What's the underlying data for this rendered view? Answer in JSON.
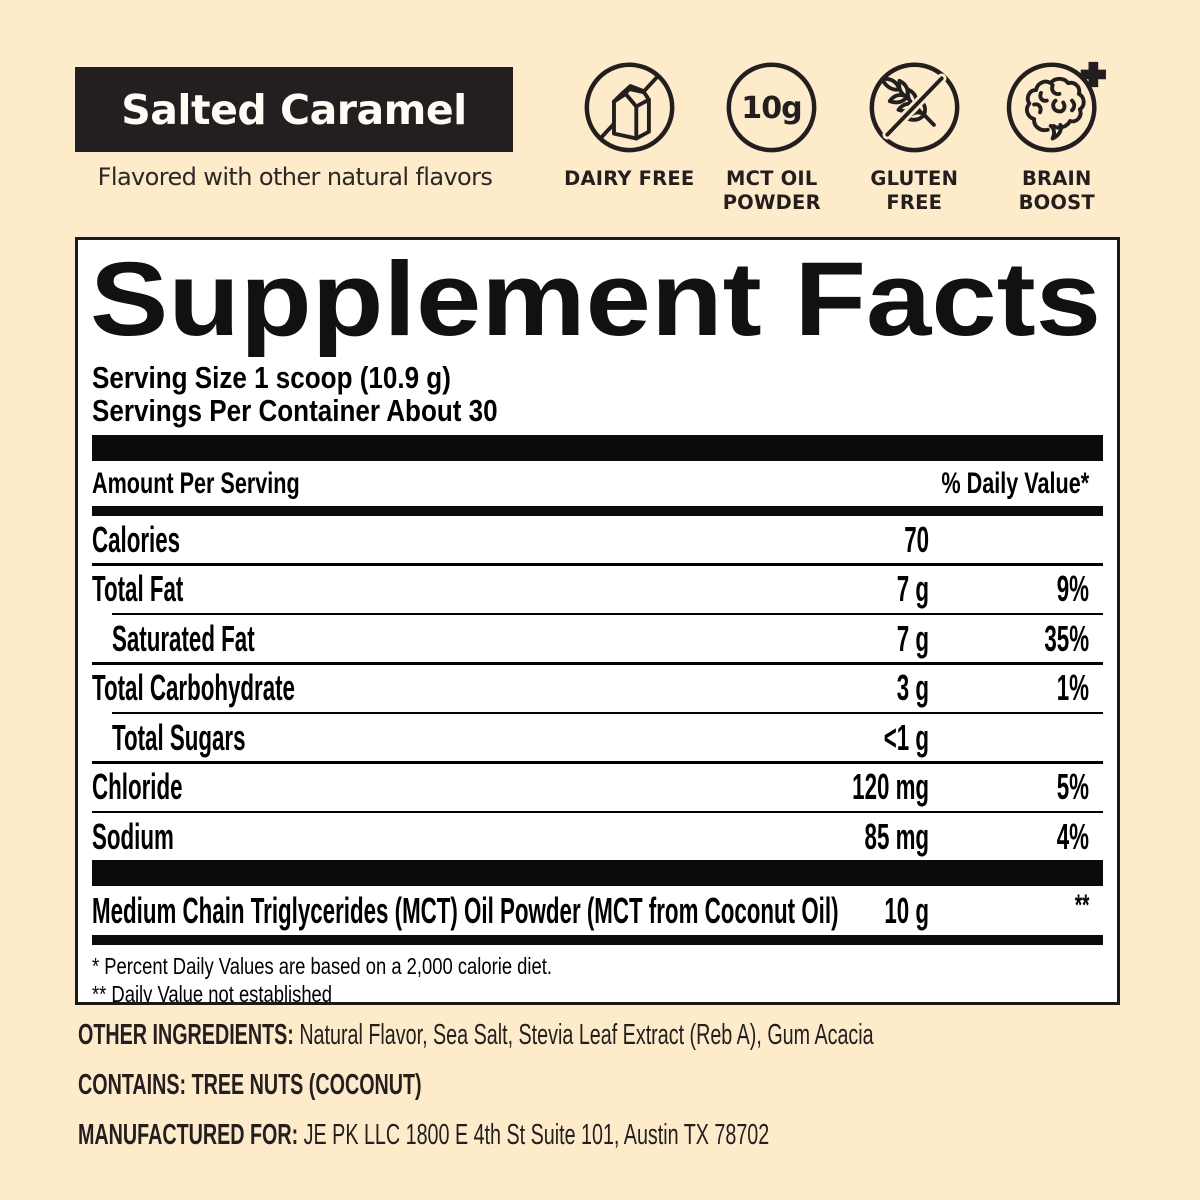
{
  "colors": {
    "background": "#FDEBCA",
    "ink": "#231F20",
    "panel_black": "#000000",
    "panel_white": "#FFFFFF"
  },
  "header": {
    "flavor": "Salted Caramel",
    "subtitle": "Flavored with other natural flavors"
  },
  "badges": [
    {
      "icon": "dairy-free-icon",
      "line1": "DAIRY FREE",
      "line2": ""
    },
    {
      "icon": "mct-oil-powder-icon",
      "circle_text": "10g",
      "line1": "MCT OIL",
      "line2": "POWDER"
    },
    {
      "icon": "gluten-free-icon",
      "line1": "GLUTEN",
      "line2": "FREE"
    },
    {
      "icon": "brain-boost-icon",
      "line1": "BRAIN",
      "line2": "BOOST"
    }
  ],
  "panel": {
    "title": "Supplement Facts",
    "serving_size": "Serving Size 1 scoop (10.9 g)",
    "servings_per_container": "Servings Per Container About 30",
    "col_left": "Amount Per Serving",
    "col_right": "% Daily Value*",
    "rows": [
      {
        "name": "Calories",
        "amount": "70",
        "dv": "",
        "indent": false
      },
      {
        "name": "Total Fat",
        "amount": "7 g",
        "dv": "9%",
        "indent": false
      },
      {
        "name": "Saturated Fat",
        "amount": "7 g",
        "dv": "35%",
        "indent": true
      },
      {
        "name": "Total Carbohydrate",
        "amount": "3 g",
        "dv": "1%",
        "indent": false
      },
      {
        "name": "Total Sugars",
        "amount": "<1 g",
        "dv": "",
        "indent": true
      },
      {
        "name": "Chloride",
        "amount": "120 mg",
        "dv": "5%",
        "indent": false
      },
      {
        "name": "Sodium",
        "amount": "85 mg",
        "dv": "4%",
        "indent": false
      }
    ],
    "mct_row": {
      "name": "Medium Chain Triglycerides (MCT) Oil Powder (MCT from Coconut Oil)",
      "amount": "10 g",
      "dv": "**"
    },
    "footnote1": "* Percent Daily Values are based on a 2,000 calorie diet.",
    "footnote2": "** Daily Value not established"
  },
  "info": [
    {
      "label": "OTHER INGREDIENTS:",
      "text": "Natural Flavor, Sea Salt, Stevia Leaf Extract (Reb A), Gum Acacia"
    },
    {
      "label": "CONTAINS:",
      "text": "TREE NUTS (COCONUT)"
    },
    {
      "label": "MANUFACTURED FOR:",
      "text": "JE PK LLC 1800 E 4th St Suite 101, Austin TX 78702"
    }
  ]
}
